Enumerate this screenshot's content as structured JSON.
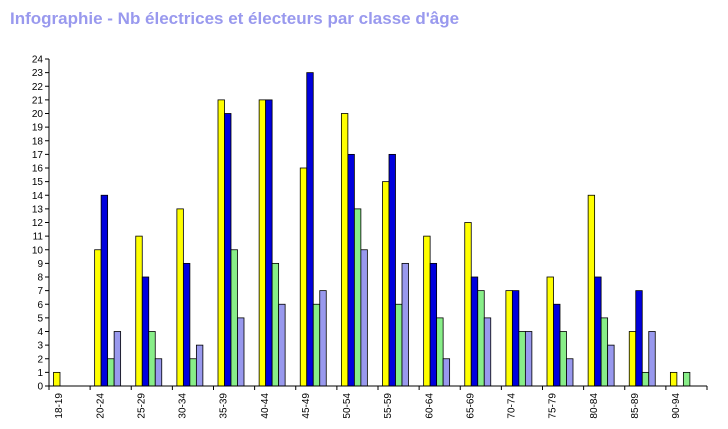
{
  "chart_data": {
    "type": "bar",
    "title": "Infographie - Nb électrices et électeurs par classe d'âge",
    "xlabel": "",
    "ylabel": "",
    "ylim": [
      0,
      24
    ],
    "yticks": [
      0,
      1,
      2,
      3,
      4,
      5,
      6,
      7,
      8,
      9,
      10,
      11,
      12,
      13,
      14,
      15,
      16,
      17,
      18,
      19,
      20,
      21,
      22,
      23,
      24
    ],
    "grid": false,
    "legend": "none",
    "categories": [
      "18-19",
      "20-24",
      "25-29",
      "30-34",
      "35-39",
      "40-44",
      "45-49",
      "50-54",
      "55-59",
      "60-64",
      "65-69",
      "70-74",
      "75-79",
      "80-84",
      "85-89",
      "90-94"
    ],
    "series": [
      {
        "color": "#ffff00",
        "values": [
          1,
          10,
          11,
          13,
          21,
          21,
          16,
          20,
          15,
          11,
          12,
          7,
          8,
          14,
          4,
          1
        ]
      },
      {
        "color": "#0000dd",
        "values": [
          0,
          14,
          8,
          9,
          20,
          21,
          23,
          17,
          17,
          9,
          8,
          7,
          6,
          8,
          7,
          0
        ]
      },
      {
        "color": "#88ee88",
        "values": [
          0,
          2,
          4,
          2,
          10,
          9,
          6,
          13,
          6,
          5,
          7,
          4,
          4,
          5,
          1,
          1
        ]
      },
      {
        "color": "#9999ee",
        "values": [
          0,
          4,
          2,
          3,
          5,
          6,
          7,
          10,
          9,
          2,
          5,
          4,
          2,
          3,
          4,
          0
        ]
      }
    ]
  }
}
